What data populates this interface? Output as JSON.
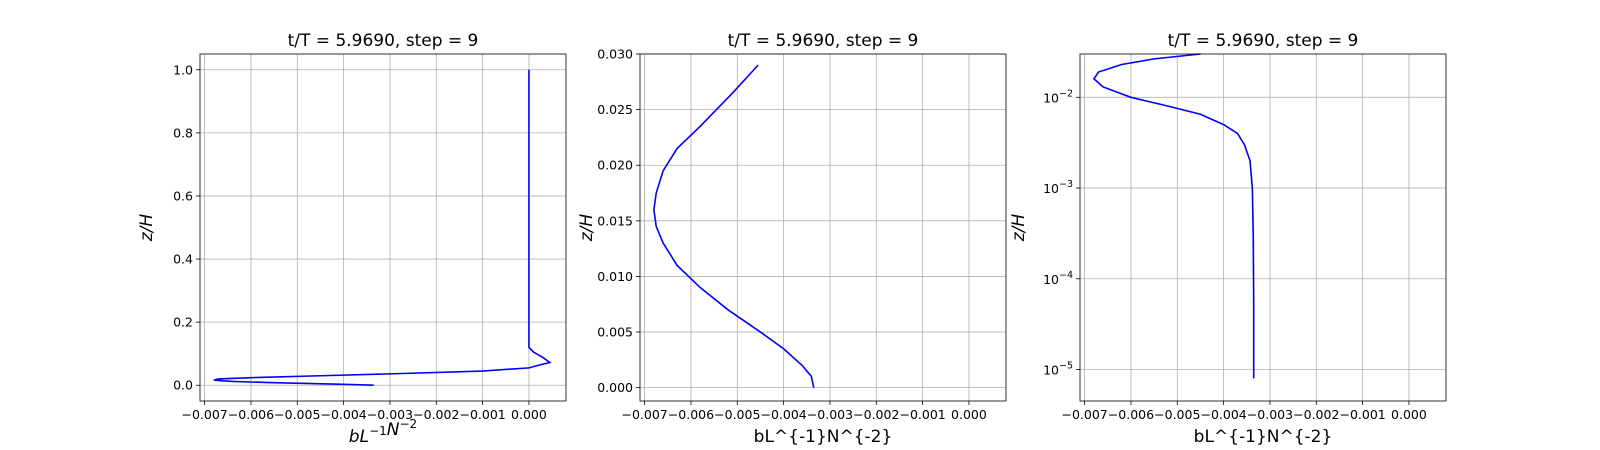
{
  "chart_data": [
    {
      "type": "line",
      "title": "t/T = 5.9690, step = 9",
      "xlabel": "bL^{-1}N^{-2}",
      "xlabel_math": true,
      "ylabel": "z/H",
      "xlim": [
        -0.0071,
        0.0008
      ],
      "ylim": [
        -0.05,
        1.05
      ],
      "yscale": "linear",
      "grid": true,
      "xticks": [
        -0.007,
        -0.006,
        -0.005,
        -0.004,
        -0.003,
        -0.002,
        -0.001,
        0.0
      ],
      "xtick_labels": [
        "−0.007",
        "−0.006",
        "−0.005",
        "−0.004",
        "−0.003",
        "−0.002",
        "−0.001",
        "0.000"
      ],
      "yticks": [
        0.0,
        0.2,
        0.4,
        0.6,
        0.8,
        1.0
      ],
      "ytick_labels": [
        "0.0",
        "0.2",
        "0.4",
        "0.6",
        "0.8",
        "1.0"
      ],
      "series": [
        {
          "color": "#0000ff",
          "x": [
            -0.00335,
            -0.004,
            -0.0055,
            -0.0064,
            -0.0068,
            -0.0067,
            -0.006,
            -0.0045,
            -0.003,
            -0.001,
            0.0,
            0.00025,
            0.00045,
            0.0003,
            0.0001,
            0.0,
            0.0,
            0.0,
            0.0,
            0.0
          ],
          "y": [
            0.0,
            0.003,
            0.008,
            0.012,
            0.016,
            0.02,
            0.024,
            0.03,
            0.036,
            0.045,
            0.055,
            0.065,
            0.072,
            0.088,
            0.105,
            0.12,
            0.14,
            0.2,
            0.5,
            1.0
          ]
        }
      ]
    },
    {
      "type": "line",
      "title": "t/T = 5.9690, step = 9",
      "xlabel": "bL^{-1}N^{-2}",
      "xlabel_math": false,
      "ylabel": "z/H",
      "xlim": [
        -0.0071,
        0.0008
      ],
      "ylim": [
        -0.0012,
        0.03
      ],
      "yscale": "linear",
      "grid": true,
      "xticks": [
        -0.007,
        -0.006,
        -0.005,
        -0.004,
        -0.003,
        -0.002,
        -0.001,
        0.0
      ],
      "xtick_labels": [
        "−0.007",
        "−0.006",
        "−0.005",
        "−0.004",
        "−0.003",
        "−0.002",
        "−0.001",
        "0.000"
      ],
      "yticks": [
        0.0,
        0.005,
        0.01,
        0.015,
        0.02,
        0.025,
        0.03
      ],
      "ytick_labels": [
        "0.000",
        "0.005",
        "0.010",
        "0.015",
        "0.020",
        "0.025",
        "0.030"
      ],
      "series": [
        {
          "color": "#0000ff",
          "x": [
            -0.00335,
            -0.0034,
            -0.0036,
            -0.004,
            -0.0045,
            -0.0052,
            -0.0058,
            -0.0063,
            -0.0066,
            -0.00675,
            -0.0068,
            -0.00675,
            -0.0066,
            -0.0063,
            -0.0058,
            -0.0051,
            -0.00455
          ],
          "y": [
            0.0,
            0.001,
            0.002,
            0.0035,
            0.005,
            0.007,
            0.009,
            0.011,
            0.013,
            0.0145,
            0.016,
            0.0175,
            0.0195,
            0.0215,
            0.0235,
            0.0265,
            0.029
          ]
        }
      ]
    },
    {
      "type": "line",
      "title": "t/T = 5.9690, step = 9",
      "xlabel": "bL^{-1}N^{-2}",
      "xlabel_math": false,
      "ylabel": "z/H",
      "xlim": [
        -0.0071,
        0.0008
      ],
      "ylim": [
        4.5e-06,
        0.03
      ],
      "yscale": "log",
      "grid": true,
      "xticks": [
        -0.007,
        -0.006,
        -0.005,
        -0.004,
        -0.003,
        -0.002,
        -0.001,
        0.0
      ],
      "xtick_labels": [
        "−0.007",
        "−0.006",
        "−0.005",
        "−0.004",
        "−0.003",
        "−0.002",
        "−0.001",
        "0.000"
      ],
      "yticks": [
        1e-05,
        0.0001,
        0.001,
        0.01
      ],
      "ytick_exponents": [
        "−5",
        "−4",
        "−3",
        "−2"
      ],
      "series": [
        {
          "color": "#0000ff",
          "x": [
            -0.00335,
            -0.00335,
            -0.00336,
            -0.00338,
            -0.00343,
            -0.00355,
            -0.0037,
            -0.004,
            -0.0045,
            -0.0052,
            -0.006,
            -0.0066,
            -0.0068,
            -0.0067,
            -0.0062,
            -0.0055,
            -0.0045
          ],
          "y": [
            8e-06,
            5e-05,
            0.0003,
            0.001,
            0.002,
            0.003,
            0.004,
            0.005,
            0.0065,
            0.008,
            0.01,
            0.013,
            0.016,
            0.019,
            0.023,
            0.0265,
            0.03
          ]
        }
      ]
    }
  ]
}
